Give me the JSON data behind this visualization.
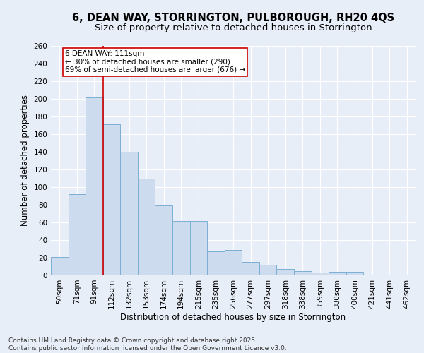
{
  "title_line1": "6, DEAN WAY, STORRINGTON, PULBOROUGH, RH20 4QS",
  "title_line2": "Size of property relative to detached houses in Storrington",
  "xlabel": "Distribution of detached houses by size in Storrington",
  "ylabel": "Number of detached properties",
  "categories": [
    "50sqm",
    "71sqm",
    "91sqm",
    "112sqm",
    "132sqm",
    "153sqm",
    "174sqm",
    "194sqm",
    "215sqm",
    "235sqm",
    "256sqm",
    "277sqm",
    "297sqm",
    "318sqm",
    "338sqm",
    "359sqm",
    "380sqm",
    "400sqm",
    "421sqm",
    "441sqm",
    "462sqm"
  ],
  "values": [
    21,
    92,
    202,
    171,
    140,
    110,
    79,
    62,
    62,
    27,
    29,
    15,
    12,
    7,
    5,
    3,
    4,
    4,
    1,
    1,
    1
  ],
  "bar_color": "#ccdcee",
  "bar_edge_color": "#7bafd4",
  "vline_color": "#cc0000",
  "annotation_line1": "6 DEAN WAY: 111sqm",
  "annotation_line2": "← 30% of detached houses are smaller (290)",
  "annotation_line3": "69% of semi-detached houses are larger (676) →",
  "annotation_box_facecolor": "#ffffff",
  "annotation_box_edgecolor": "#cc0000",
  "background_color": "#e8eef8",
  "grid_color": "#ffffff",
  "ylim": [
    0,
    260
  ],
  "yticks": [
    0,
    20,
    40,
    60,
    80,
    100,
    120,
    140,
    160,
    180,
    200,
    220,
    240,
    260
  ],
  "footer_line1": "Contains HM Land Registry data © Crown copyright and database right 2025.",
  "footer_line2": "Contains public sector information licensed under the Open Government Licence v3.0.",
  "title_fontsize": 10.5,
  "subtitle_fontsize": 9.5,
  "axis_label_fontsize": 8.5,
  "tick_fontsize": 7.5,
  "annotation_fontsize": 7.5,
  "footer_fontsize": 6.5
}
